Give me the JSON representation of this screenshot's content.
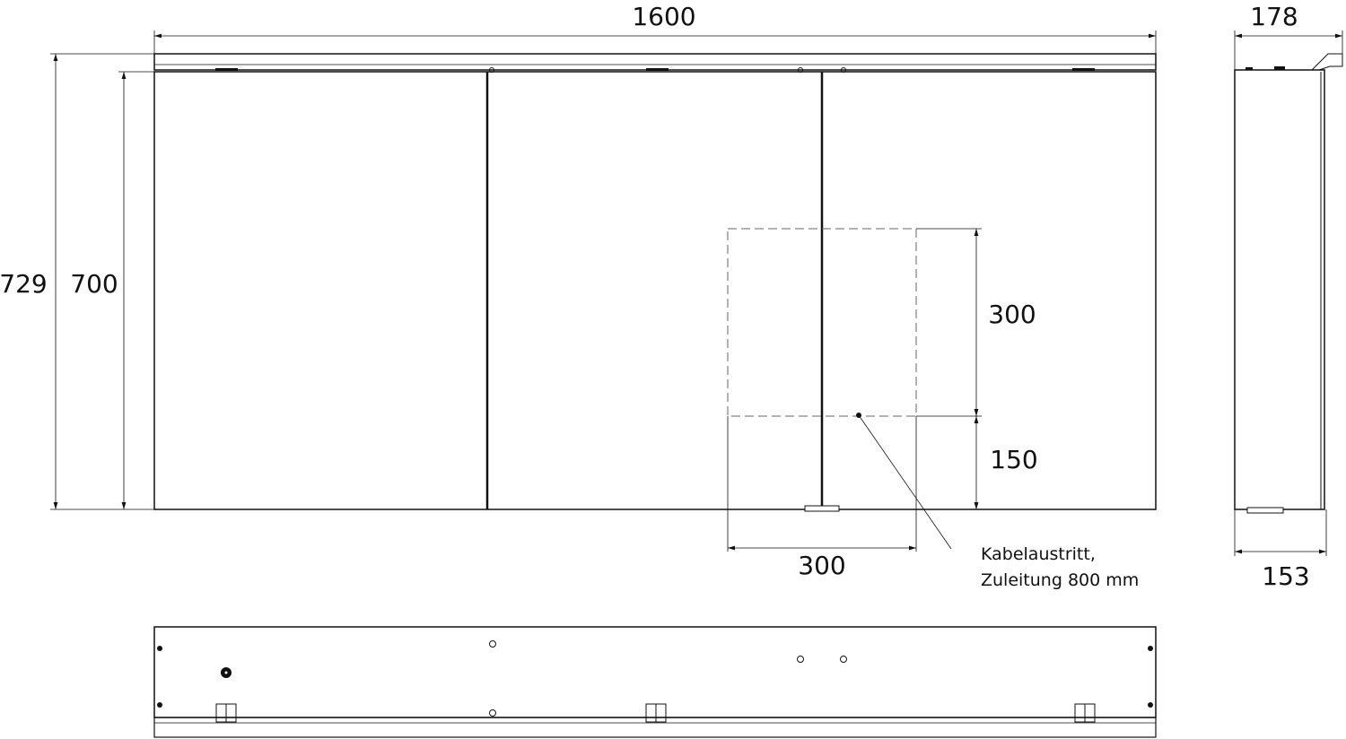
{
  "dimensions": {
    "total_width": "1600",
    "total_height": "729",
    "door_height": "700",
    "cutout_height": "300",
    "cutout_offset": "150",
    "cutout_width": "300",
    "side_depth_total": "178",
    "side_depth_body": "153"
  },
  "note": {
    "line1": "Kabelaustritt,",
    "line2": "Zuleitung 800 mm"
  },
  "colors": {
    "line": "#111111",
    "background": "#ffffff"
  }
}
